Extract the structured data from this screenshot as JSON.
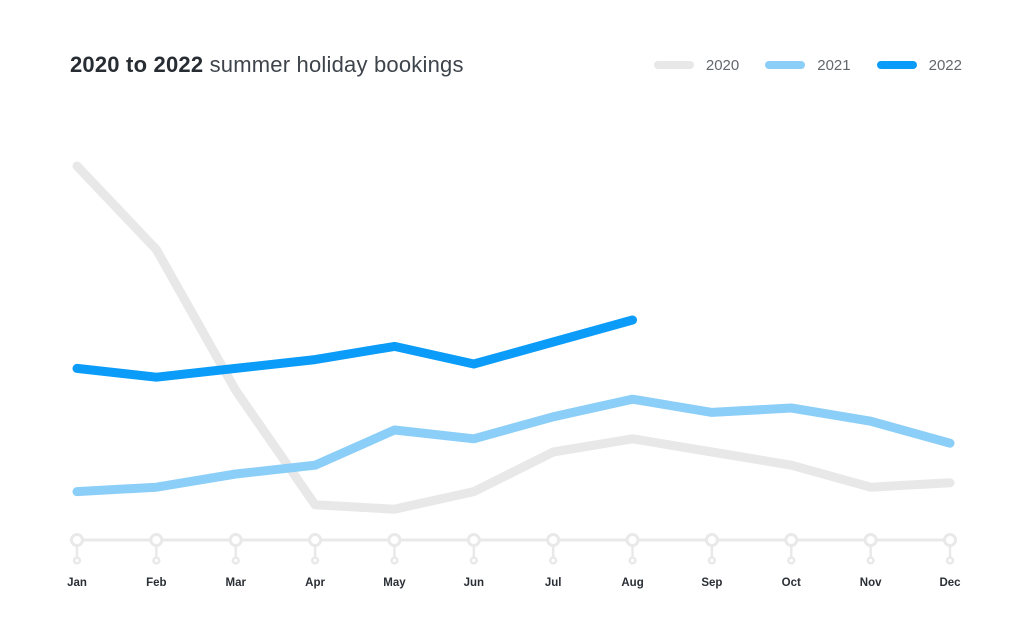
{
  "header": {
    "title_bold": "2020 to 2022",
    "title_regular": "summer holiday bookings"
  },
  "chart_data": {
    "type": "line",
    "title": "2020 to 2022 summer holiday bookings",
    "categories": [
      "Jan",
      "Feb",
      "Mar",
      "Apr",
      "May",
      "Jun",
      "Jul",
      "Aug",
      "Sep",
      "Oct",
      "Nov",
      "Dec"
    ],
    "series": [
      {
        "name": "2020",
        "color": "#e8e8e8",
        "values": [
          85,
          66,
          34,
          8,
          7,
          11,
          20,
          23,
          20,
          17,
          12,
          13
        ]
      },
      {
        "name": "2021",
        "color": "#8bcef8",
        "values": [
          11,
          12,
          15,
          17,
          25,
          23,
          28,
          32,
          29,
          30,
          27,
          22
        ]
      },
      {
        "name": "2022",
        "color": "#0a9cf8",
        "values": [
          39,
          37,
          39,
          41,
          44,
          40,
          45,
          50
        ]
      }
    ],
    "xlabel": "",
    "ylabel": "",
    "ylim": [
      0,
      100
    ],
    "y_axis_visible": false,
    "grid": false,
    "legend_position": "top-right",
    "units": "relative booking volume (no numeric axis shown)"
  },
  "colors": {
    "axis": "#e9e9e9",
    "month_label": "#2a2f35",
    "legend_label": "#62686e",
    "background": "#ffffff"
  }
}
